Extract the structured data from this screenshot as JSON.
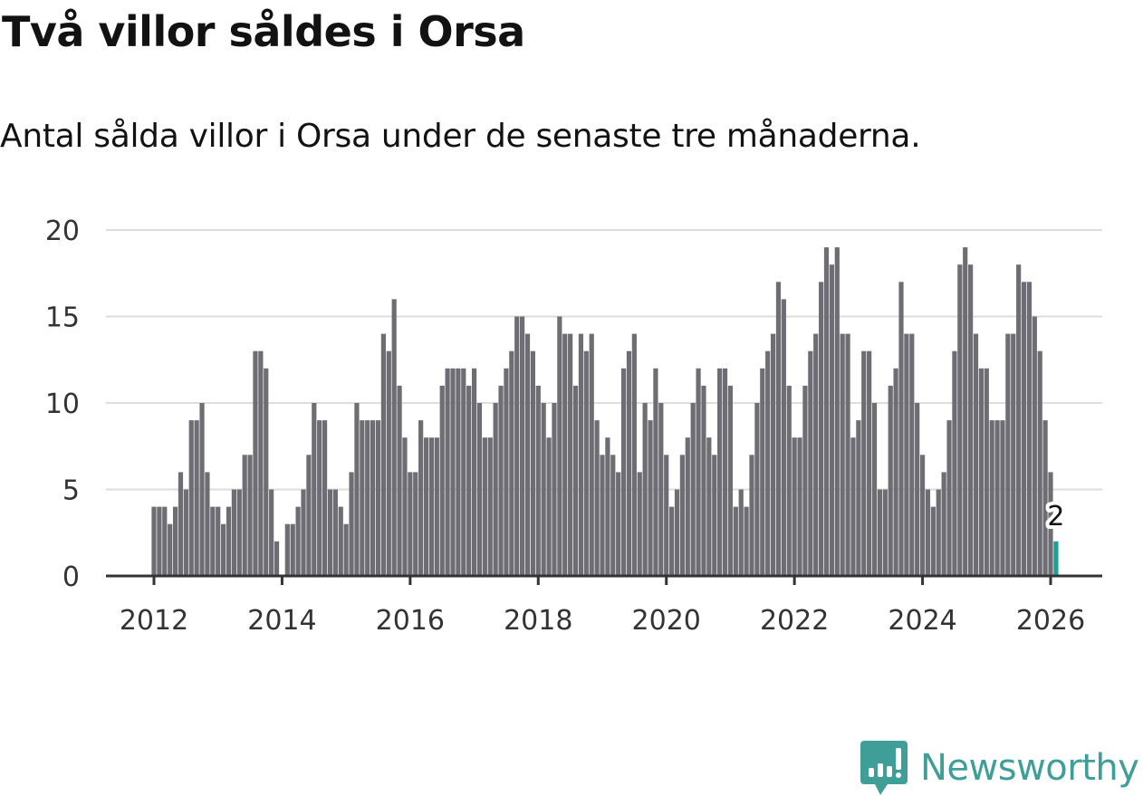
{
  "header": {
    "title": "Två villor såldes i Orsa",
    "subtitle": "Antal sålda villor i Orsa under de senaste tre månaderna."
  },
  "chart_data": {
    "type": "bar",
    "title": "Två villor såldes i Orsa",
    "subtitle": "Antal sålda villor i Orsa under de senaste tre månaderna.",
    "xlabel": "",
    "ylabel": "",
    "start": "2012-01",
    "frequency": "monthly",
    "ylim": [
      0,
      20
    ],
    "yticks": [
      0,
      5,
      10,
      15,
      20
    ],
    "xticks": [
      "2012",
      "2014",
      "2016",
      "2018",
      "2020",
      "2022",
      "2024",
      "2026"
    ],
    "grid": true,
    "values": [
      4,
      4,
      4,
      3,
      4,
      6,
      5,
      9,
      9,
      10,
      6,
      4,
      4,
      3,
      4,
      5,
      5,
      7,
      7,
      13,
      13,
      12,
      5,
      2,
      0,
      3,
      3,
      4,
      5,
      7,
      10,
      9,
      9,
      5,
      5,
      4,
      3,
      6,
      10,
      9,
      9,
      9,
      9,
      14,
      13,
      16,
      11,
      8,
      6,
      6,
      9,
      8,
      8,
      8,
      11,
      12,
      12,
      12,
      12,
      11,
      12,
      10,
      8,
      8,
      10,
      11,
      12,
      13,
      15,
      15,
      14,
      13,
      11,
      10,
      8,
      10,
      15,
      14,
      14,
      11,
      14,
      13,
      14,
      9,
      7,
      8,
      7,
      6,
      12,
      13,
      14,
      6,
      10,
      9,
      12,
      10,
      7,
      4,
      5,
      7,
      8,
      10,
      12,
      11,
      8,
      7,
      12,
      12,
      11,
      4,
      5,
      4,
      7,
      10,
      12,
      13,
      14,
      17,
      16,
      11,
      8,
      8,
      11,
      13,
      14,
      17,
      19,
      18,
      19,
      14,
      14,
      8,
      9,
      13,
      13,
      10,
      5,
      5,
      11,
      12,
      17,
      14,
      14,
      10,
      7,
      5,
      4,
      5,
      6,
      9,
      13,
      18,
      19,
      18,
      14,
      12,
      12,
      9,
      9,
      9,
      14,
      14,
      18,
      17,
      17,
      15,
      13,
      9,
      6,
      2
    ],
    "highlight": {
      "label": "2",
      "value": 2
    },
    "colors": {
      "bar": "#6e6d73",
      "highlight": "#1aa096",
      "grid": "#dddddd",
      "axis": "#333333"
    }
  },
  "brand": {
    "name": "Newsworthy",
    "color": "#3f9e97"
  }
}
